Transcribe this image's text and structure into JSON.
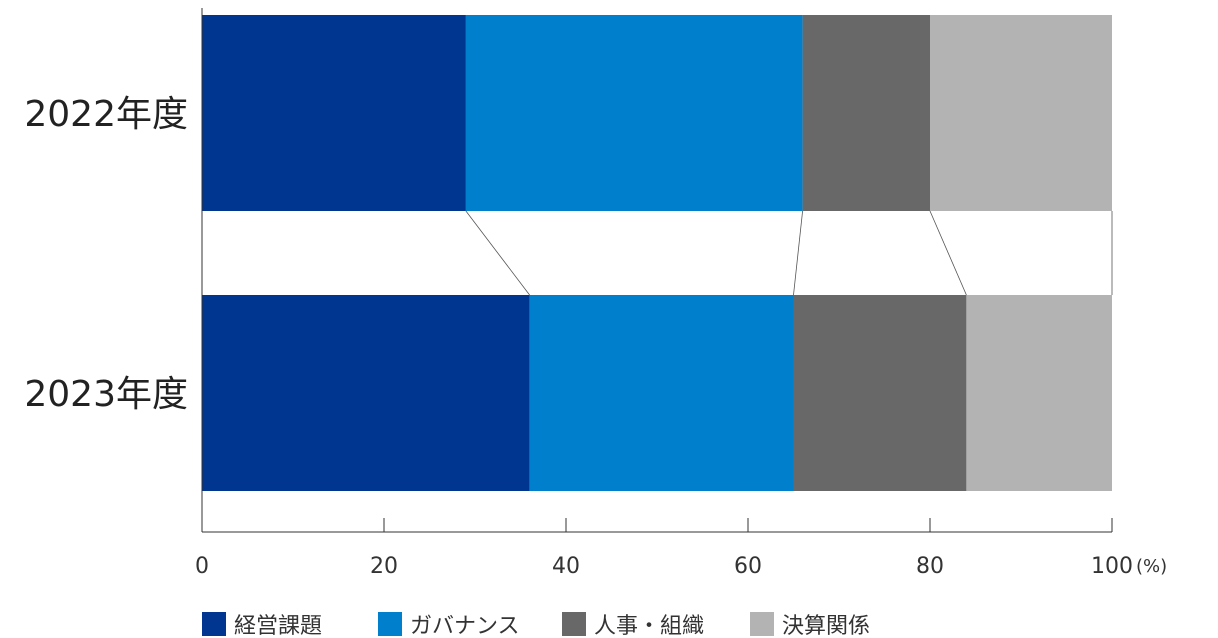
{
  "chart_data": {
    "type": "bar",
    "orientation": "horizontal",
    "stacked": true,
    "categories": [
      "2022年度",
      "2023年度"
    ],
    "series": [
      {
        "name": "経営課題",
        "values": [
          29,
          36
        ],
        "color": "#00368f"
      },
      {
        "name": "ガバナンス",
        "values": [
          37,
          29
        ],
        "color": "#0080cc"
      },
      {
        "name": "人事・組織",
        "values": [
          14,
          19
        ],
        "color": "#686868"
      },
      {
        "name": "決算関係",
        "values": [
          20,
          16
        ],
        "color": "#b3b3b3"
      }
    ],
    "xlim": [
      0,
      100
    ],
    "xticks": [
      0,
      20,
      40,
      60,
      80,
      100
    ],
    "xtick_labels": [
      "0",
      "20",
      "40",
      "60",
      "80",
      "100"
    ],
    "x_unit": "(%)",
    "grid": false,
    "legend_position": "bottom",
    "connector_lines": true
  }
}
